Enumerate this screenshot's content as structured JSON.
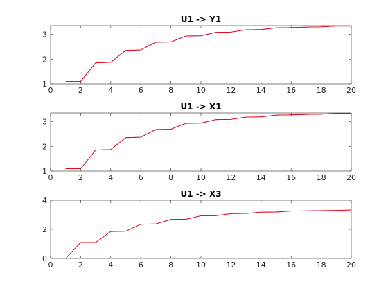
{
  "figure": {
    "background": "#ffffff",
    "axis_color": "#262626"
  },
  "chart_data": [
    {
      "type": "line",
      "title": "U1 -> Y1",
      "xlabel": "",
      "ylabel": "",
      "xlim": [
        0,
        20
      ],
      "ylim": [
        1,
        3.35
      ],
      "xticks": [
        0,
        2,
        4,
        6,
        8,
        10,
        12,
        14,
        16,
        18,
        20
      ],
      "yticks": [
        1,
        2,
        3
      ],
      "grid": false,
      "x": [
        1,
        2,
        2,
        3,
        3,
        4,
        4,
        5,
        5,
        6,
        6,
        7,
        7,
        8,
        8,
        9,
        9,
        10,
        10,
        11,
        11,
        12,
        12,
        13,
        13,
        14,
        14,
        15,
        15,
        16,
        16,
        17,
        17,
        18,
        18,
        19,
        19,
        20
      ],
      "series": [
        {
          "color": "#1f1fd0",
          "values": [
            1.1,
            1.1,
            1.1,
            1.85,
            1.85,
            1.87,
            1.87,
            2.35,
            2.35,
            2.37,
            2.37,
            2.68,
            2.68,
            2.69,
            2.69,
            2.93,
            2.93,
            2.94,
            2.94,
            3.08,
            3.08,
            3.09,
            3.09,
            3.18,
            3.18,
            3.19,
            3.19,
            3.26,
            3.26,
            3.27,
            3.27,
            3.29,
            3.29,
            3.3,
            3.3,
            3.33,
            3.33,
            3.33
          ]
        },
        {
          "color": "#ff0000",
          "values": [
            1.1,
            1.1,
            1.1,
            1.85,
            1.85,
            1.87,
            1.87,
            2.35,
            2.35,
            2.37,
            2.37,
            2.68,
            2.68,
            2.69,
            2.69,
            2.93,
            2.93,
            2.94,
            2.94,
            3.08,
            3.08,
            3.09,
            3.09,
            3.18,
            3.18,
            3.19,
            3.19,
            3.26,
            3.26,
            3.27,
            3.27,
            3.29,
            3.29,
            3.3,
            3.3,
            3.33,
            3.33,
            3.33
          ]
        }
      ]
    },
    {
      "type": "line",
      "title": "U1 -> X1",
      "xlabel": "",
      "ylabel": "",
      "xlim": [
        0,
        20
      ],
      "ylim": [
        1,
        3.35
      ],
      "xticks": [
        0,
        2,
        4,
        6,
        8,
        10,
        12,
        14,
        16,
        18,
        20
      ],
      "yticks": [
        1,
        2,
        3
      ],
      "grid": false,
      "x": [
        1,
        2,
        2,
        3,
        3,
        4,
        4,
        5,
        5,
        6,
        6,
        7,
        7,
        8,
        8,
        9,
        9,
        10,
        10,
        11,
        11,
        12,
        12,
        13,
        13,
        14,
        14,
        15,
        15,
        16,
        16,
        17,
        17,
        18,
        18,
        19,
        19,
        20
      ],
      "series": [
        {
          "color": "#1f1fd0",
          "values": [
            1.1,
            1.1,
            1.1,
            1.85,
            1.85,
            1.87,
            1.87,
            2.35,
            2.35,
            2.37,
            2.37,
            2.68,
            2.68,
            2.69,
            2.69,
            2.93,
            2.93,
            2.94,
            2.94,
            3.08,
            3.08,
            3.09,
            3.09,
            3.18,
            3.18,
            3.19,
            3.19,
            3.26,
            3.26,
            3.27,
            3.27,
            3.29,
            3.29,
            3.3,
            3.3,
            3.33,
            3.33,
            3.33
          ]
        },
        {
          "color": "#ff0000",
          "values": [
            1.1,
            1.1,
            1.1,
            1.85,
            1.85,
            1.87,
            1.87,
            2.35,
            2.35,
            2.37,
            2.37,
            2.68,
            2.68,
            2.69,
            2.69,
            2.93,
            2.93,
            2.94,
            2.94,
            3.08,
            3.08,
            3.09,
            3.09,
            3.18,
            3.18,
            3.19,
            3.19,
            3.26,
            3.26,
            3.27,
            3.27,
            3.29,
            3.29,
            3.3,
            3.3,
            3.33,
            3.33,
            3.33
          ]
        }
      ]
    },
    {
      "type": "line",
      "title": "U1 -> X3",
      "xlabel": "",
      "ylabel": "",
      "xlim": [
        0,
        20
      ],
      "ylim": [
        0,
        4
      ],
      "xticks": [
        0,
        2,
        4,
        6,
        8,
        10,
        12,
        14,
        16,
        18,
        20
      ],
      "yticks": [
        0,
        2,
        4
      ],
      "grid": false,
      "x": [
        1,
        2,
        2,
        3,
        3,
        4,
        4,
        5,
        5,
        6,
        6,
        7,
        7,
        8,
        8,
        9,
        9,
        10,
        10,
        11,
        11,
        12,
        12,
        13,
        13,
        14,
        14,
        15,
        15,
        16,
        16,
        17,
        17,
        18,
        18,
        19,
        19,
        20
      ],
      "series": [
        {
          "color": "#1f1fd0",
          "values": [
            0.0,
            1.1,
            1.1,
            1.1,
            1.1,
            1.85,
            1.85,
            1.87,
            1.87,
            2.35,
            2.35,
            2.37,
            2.37,
            2.68,
            2.68,
            2.69,
            2.69,
            2.93,
            2.93,
            2.94,
            2.94,
            3.08,
            3.08,
            3.09,
            3.09,
            3.18,
            3.18,
            3.19,
            3.19,
            3.26,
            3.26,
            3.27,
            3.27,
            3.29,
            3.29,
            3.3,
            3.3,
            3.33
          ]
        },
        {
          "color": "#ff0000",
          "values": [
            0.0,
            1.1,
            1.1,
            1.1,
            1.1,
            1.85,
            1.85,
            1.87,
            1.87,
            2.35,
            2.35,
            2.37,
            2.37,
            2.68,
            2.68,
            2.69,
            2.69,
            2.93,
            2.93,
            2.94,
            2.94,
            3.08,
            3.08,
            3.09,
            3.09,
            3.18,
            3.18,
            3.19,
            3.19,
            3.26,
            3.26,
            3.27,
            3.27,
            3.29,
            3.29,
            3.3,
            3.3,
            3.33
          ]
        }
      ]
    }
  ]
}
